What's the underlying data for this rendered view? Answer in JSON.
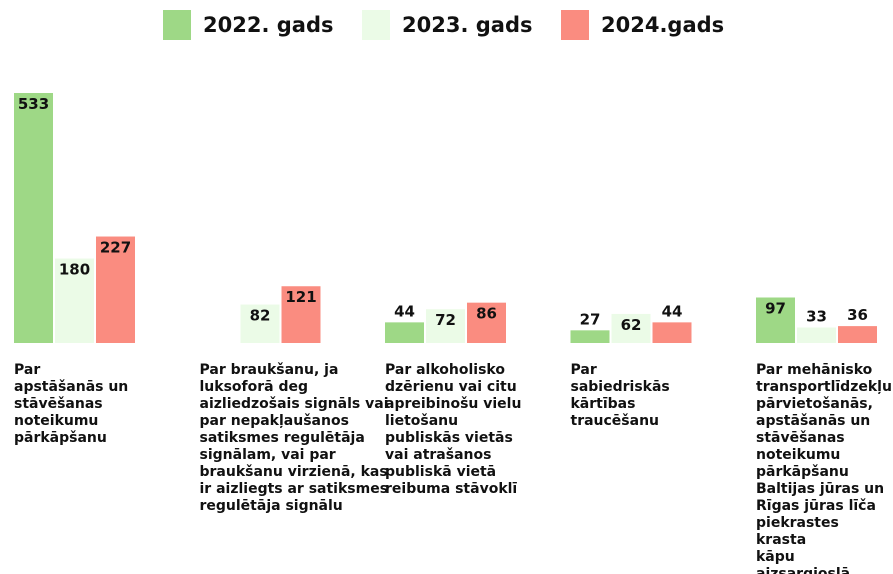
{
  "chart_data": {
    "type": "bar",
    "categories": [
      "Par\napstāšanās un\nstāvēšanas\nnoteikumu\npārkāpšanu",
      "Par braukšanu, ja\nluksoforā deg\naizliedzošais signāls vai\npar nepakļaušanos\nsatiksmes regulētāja\nsignālam, vai par\nbraukšanu virzienā, kas\nir aizliegts ar satiksmes\nregulētāja signālu",
      "Par alkoholisko\ndzērienu vai citu\napreibinošu vielu\nlietošanu\npubliskās vietās\nvai atrašanos\npubliskā vietā\nreibuma stāvoklī",
      "Par\nsabiedriskās\nkārtības\ntraucēšanu",
      "Par mehānisko\ntransportlīdzekļu\npārvietošanās,\napstāšanās un\nstāvēšanas\nnoteikumu\npārkāpšanu\nBaltijas jūras un\nRīgas jūras līča\npiekrastes krasta\nkāpu aizsargjoslā\nun pludmalē"
    ],
    "series": [
      {
        "name": "2022. gads",
        "color": "#9ed886",
        "values": [
          533,
          null,
          44,
          27,
          97
        ]
      },
      {
        "name": "2023. gads",
        "color": "#ebfbe7",
        "values": [
          180,
          82,
          72,
          62,
          33
        ]
      },
      {
        "name": "2024.gads",
        "color": "#fa8c80",
        "values": [
          227,
          121,
          86,
          44,
          36
        ]
      }
    ],
    "legend": "top"
  }
}
